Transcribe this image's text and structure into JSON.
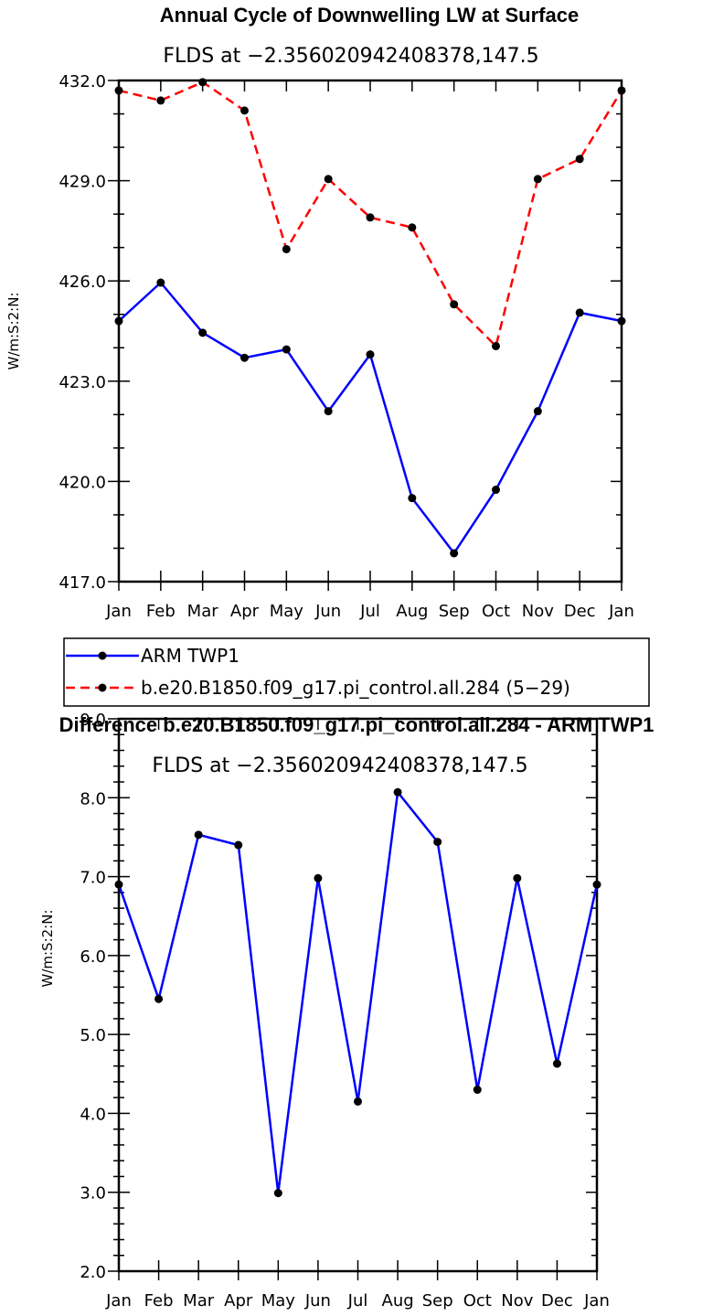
{
  "chart_data": [
    {
      "type": "line",
      "title": "Annual Cycle of Downwelling LW at Surface",
      "subtitle": "FLDS at −2.356020942408378,147.5",
      "ylabel": "W/m:S:2:N:",
      "xlabel": "",
      "categories": [
        "Jan",
        "Feb",
        "Mar",
        "Apr",
        "May",
        "Jun",
        "Jul",
        "Aug",
        "Sep",
        "Oct",
        "Nov",
        "Dec",
        "Jan"
      ],
      "ylim": [
        417,
        432
      ],
      "yticks": [
        "432.0",
        "429.0",
        "426.0",
        "423.0",
        "420.0",
        "417.0"
      ],
      "series": [
        {
          "name": "ARM TWP1",
          "color": "#0000ff",
          "dash": "solid",
          "values": [
            424.8,
            425.95,
            424.45,
            423.7,
            423.95,
            422.1,
            423.8,
            419.5,
            417.85,
            419.75,
            422.1,
            425.05,
            424.8
          ]
        },
        {
          "name": "b.e20.B1850.f09_g17.pi_control.all.284 (5−29)",
          "color": "#ff0000",
          "dash": "dashed",
          "values": [
            431.7,
            431.4,
            431.95,
            431.1,
            426.95,
            429.05,
            427.9,
            427.6,
            425.3,
            424.05,
            429.05,
            429.65,
            431.7
          ]
        }
      ],
      "legend_position": "below"
    },
    {
      "type": "line",
      "title": "Difference b.e20.B1850.f09_g17.pi_control.all.284 - ARM TWP1",
      "subtitle": "FLDS at −2.356020942408378,147.5",
      "ylabel": "W/m:S:2:N:",
      "xlabel": "",
      "categories": [
        "Jan",
        "Feb",
        "Mar",
        "Apr",
        "May",
        "Jun",
        "Jul",
        "Aug",
        "Sep",
        "Oct",
        "Nov",
        "Dec",
        "Jan"
      ],
      "ylim": [
        2,
        9
      ],
      "yticks": [
        "9.0",
        "8.0",
        "7.0",
        "6.0",
        "5.0",
        "4.0",
        "3.0",
        "2.0"
      ],
      "series": [
        {
          "name": "Difference",
          "color": "#0000ff",
          "dash": "solid",
          "values": [
            6.9,
            5.45,
            7.53,
            7.4,
            2.99,
            6.98,
            4.15,
            8.07,
            7.44,
            4.3,
            6.98,
            4.63,
            6.9
          ]
        }
      ]
    }
  ]
}
